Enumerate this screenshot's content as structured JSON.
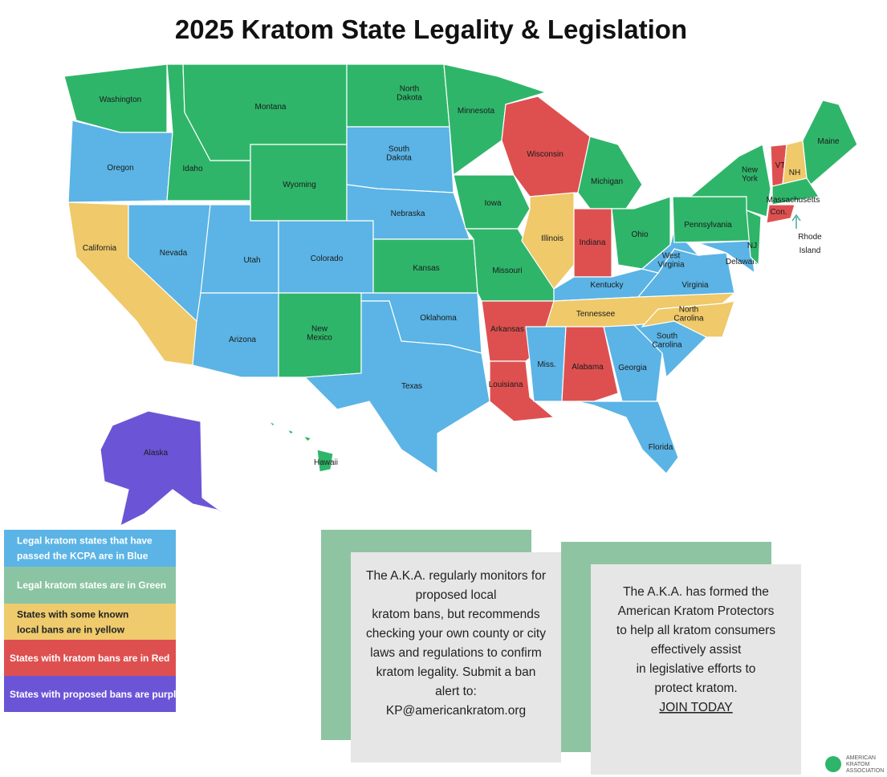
{
  "title": "2025 Kratom State Legality & Legislation",
  "states": [
    [
      "Washington"
    ],
    [
      "Oregon"
    ],
    [
      "California"
    ],
    [
      "Nevada"
    ],
    [
      "Idaho"
    ],
    [
      "Montana"
    ],
    [
      "Wyoming"
    ],
    [
      "Utah"
    ],
    [
      "Colorado"
    ],
    [
      "Arizona"
    ],
    [
      "New",
      "Mexico"
    ],
    [
      "North",
      "Dakota"
    ],
    [
      "South",
      "Dakota"
    ],
    [
      "Nebraska"
    ],
    [
      "Kansas"
    ],
    [
      "Oklahoma"
    ],
    [
      "Texas"
    ],
    [
      "Minnesota"
    ],
    [
      "Iowa"
    ],
    [
      "Missouri"
    ],
    [
      "Arkansas"
    ],
    [
      "Louisiana"
    ],
    [
      "Wisconsin"
    ],
    [
      "Illinois"
    ],
    [
      "Michigan"
    ],
    [
      "Indiana"
    ],
    [
      "Ohio"
    ],
    [
      "Kentucky"
    ],
    [
      "Tennessee"
    ],
    [
      "Miss."
    ],
    [
      "Alabama"
    ],
    [
      "Georgia"
    ],
    [
      "Florida"
    ],
    [
      "South",
      "Carolina"
    ],
    [
      "North",
      "Carolina"
    ],
    [
      "Virginia"
    ],
    [
      "West",
      "Virginia"
    ],
    [
      "Pennsylvania"
    ],
    [
      "Delaware"
    ],
    [
      "NJ"
    ],
    [
      "New",
      "York"
    ],
    [
      "VT"
    ],
    [
      "NH"
    ],
    [
      "Maine"
    ],
    [
      "Massachusetts"
    ],
    [
      "Con."
    ],
    [
      "Alaska"
    ],
    [
      "Hawaii"
    ]
  ],
  "rhode_island": [
    "Rhode",
    "Island"
  ],
  "legend": [
    [
      "Legal kratom states that have",
      "passed the KCPA are in Blue"
    ],
    [
      "Legal kratom states are in Green"
    ],
    [
      "States with some known",
      "local bans are in yellow"
    ],
    [
      "States with kratom bans are in Red"
    ],
    [
      "States with proposed bans are purple"
    ]
  ],
  "info_boxes": [
    {
      "lines": [
        "The A.K.A. regularly monitors for",
        "proposed local",
        "kratom bans, but recommends",
        "checking your own county or city",
        "laws and regulations to confirm",
        "kratom legality. Submit a ban",
        "alert to:",
        "KP@americankratom.org"
      ]
    },
    {
      "lines": [
        "The A.K.A. has formed the",
        "American Kratom Protectors",
        "to help all kratom consumers",
        "effectively assist",
        "in legislative efforts to",
        "protect kratom."
      ],
      "link": "JOIN TODAY"
    }
  ],
  "logo": [
    "AMERICAN",
    "KRATOM",
    "ASSOCIATION"
  ]
}
